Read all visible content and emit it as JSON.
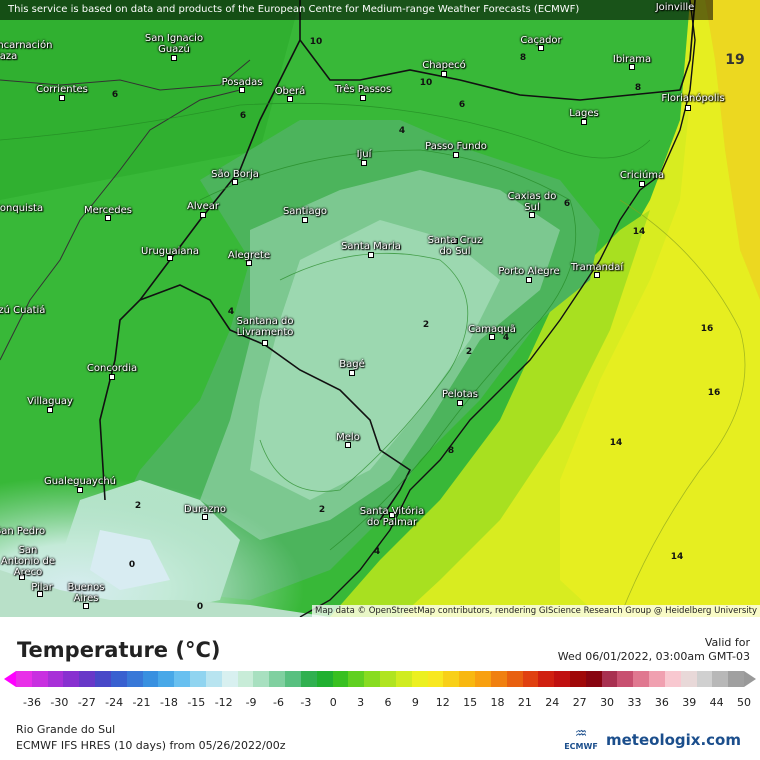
{
  "notice": "This service is based on data and products of the European Centre for Medium-range Weather Forecasts (ECMWF)",
  "attribution": "Map data © OpenStreetMap contributors, rendering GIScience Research Group @ Heidelberg University",
  "cities": [
    {
      "name": "Joinville",
      "icon": "none"
    },
    {
      "name": "San Ignacio Guazú",
      "icon": "city-dot"
    },
    {
      "name": "Caçador",
      "icon": "city-dot"
    },
    {
      "name": "Chapecó",
      "icon": "city-dot"
    },
    {
      "name": "Ibirama",
      "icon": "city-dot"
    },
    {
      "name": "Encarnación Plaza",
      "icon": "none"
    },
    {
      "name": "Corrientes",
      "icon": "city-dot"
    },
    {
      "name": "Posadas",
      "icon": "city-dot"
    },
    {
      "name": "Oberá",
      "icon": "city-dot"
    },
    {
      "name": "Três Passos",
      "icon": "city-dot"
    },
    {
      "name": "Florianópolis",
      "icon": "city-dot"
    },
    {
      "name": "Lages",
      "icon": "city-dot"
    },
    {
      "name": "Ijuí",
      "icon": "city-dot"
    },
    {
      "name": "Passo Fundo",
      "icon": "city-dot"
    },
    {
      "name": "São Borja",
      "icon": "city-dot"
    },
    {
      "name": "Criciúma",
      "icon": "city-dot"
    },
    {
      "name": "Conquista",
      "icon": "none"
    },
    {
      "name": "Mercedes",
      "icon": "city-dot"
    },
    {
      "name": "Alvear",
      "icon": "city-dot"
    },
    {
      "name": "Santiago",
      "icon": "city-dot"
    },
    {
      "name": "Caxias do Sul",
      "icon": "city-dot"
    },
    {
      "name": "Santa Maria",
      "icon": "city-dot"
    },
    {
      "name": "Santa Cruz do Sul",
      "icon": "city-dot"
    },
    {
      "name": "Uruguaiana",
      "icon": "city-dot"
    },
    {
      "name": "Alegrete",
      "icon": "city-dot"
    },
    {
      "name": "Porto Alegre",
      "icon": "city-dot"
    },
    {
      "name": "Tramandaí",
      "icon": "city-dot"
    },
    {
      "name": "Curuzú Cuatiá",
      "icon": "none"
    },
    {
      "name": "Santana do Livramento",
      "icon": "city-dot"
    },
    {
      "name": "Camaquã",
      "icon": "city-dot"
    },
    {
      "name": "Concordia",
      "icon": "city-dot"
    },
    {
      "name": "Bagé",
      "icon": "city-dot"
    },
    {
      "name": "Villaguay",
      "icon": "city-dot"
    },
    {
      "name": "Pelotas",
      "icon": "city-dot"
    },
    {
      "name": "Melo",
      "icon": "city-dot"
    },
    {
      "name": "Gualeguaychú",
      "icon": "city-dot"
    },
    {
      "name": "Durazno",
      "icon": "city-dot"
    },
    {
      "name": "Santa Vitória do Palmar",
      "icon": "city-dot"
    },
    {
      "name": "San Pedro",
      "icon": "none"
    },
    {
      "name": "San Antonio de Areco",
      "icon": "city-dot"
    },
    {
      "name": "Pilar",
      "icon": "city-dot"
    },
    {
      "name": "Buenos Aires",
      "icon": "city-dot"
    }
  ],
  "isolines": [
    "10",
    "19",
    "6",
    "8",
    "10",
    "6",
    "8",
    "6",
    "4",
    "6",
    "14",
    "4",
    "2",
    "2",
    "4",
    "16",
    "16",
    "14",
    "2",
    "8",
    "2",
    "0",
    "4",
    "14",
    "0"
  ],
  "legend": {
    "title": "Temperature (°C)",
    "valid_label": "Valid for",
    "valid_time": "Wed 06/01/2022, 03:00am GMT-03",
    "tick_labels": [
      "-36",
      "-30",
      "-27",
      "-24",
      "-21",
      "-18",
      "-15",
      "-12",
      "-9",
      "-6",
      "-3",
      "0",
      "3",
      "6",
      "9",
      "12",
      "15",
      "18",
      "21",
      "24",
      "27",
      "30",
      "33",
      "36",
      "39",
      "44",
      "50"
    ],
    "colors": [
      "#e830e8",
      "#c830e0",
      "#a830d8",
      "#8830d0",
      "#6838c8",
      "#4848c8",
      "#3860d0",
      "#3878d8",
      "#3890e0",
      "#48a8e8",
      "#68c0f0",
      "#90d4f0",
      "#b8e4f0",
      "#d8f0f0",
      "#c8ecd8",
      "#a8e0c0",
      "#80d0a0",
      "#58c080",
      "#30b050",
      "#20b030",
      "#38c020",
      "#60d020",
      "#88dc20",
      "#b0e420",
      "#d0ec20",
      "#ecf020",
      "#f8e820",
      "#f8d018",
      "#f8b810",
      "#f8a010",
      "#f08010",
      "#e86010",
      "#e04010",
      "#d02010",
      "#c01010",
      "#a00808",
      "#880410",
      "#a83050",
      "#c85070",
      "#e07890",
      "#f0a0b0",
      "#f8c8d0",
      "#e8d8d8",
      "#d0d0d0",
      "#b8b8b8",
      "#a0a0a0"
    ],
    "region": "Rio Grande do Sul",
    "model": "ECMWF IFS HRES (10 days) from 05/26/2022/00z",
    "ecmwf_logo": "ECMWF",
    "site_logo": "meteologix.com"
  }
}
